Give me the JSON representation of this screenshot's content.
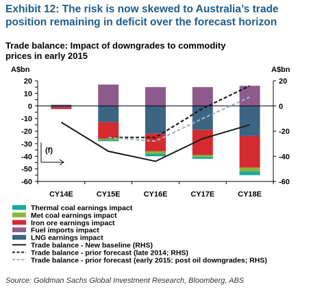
{
  "exhibit": {
    "title": "Exhibit 12: The risk is now skewed to Australia’s trade position remaining in deficit over the forecast horizon",
    "source": "Source: Goldman Sachs Global Investment Research, Bloomberg, ABS"
  },
  "colors": {
    "thermal_coal": "#1aa89a",
    "met_coal": "#8cb43a",
    "iron_ore": "#d42a30",
    "fuel_imports": "#8e5a8c",
    "lng": "#3b6583",
    "new_baseline": "#1a1a1a",
    "prior_late_2014": "#1a1a1a",
    "prior_early_2015": "#9fb0c8"
  },
  "chart_data": {
    "type": "bar",
    "title": "Trade balance: Impact of downgrades to commodity prices in early 2015",
    "ylabel_left": "A$bn",
    "ylabel_right": "A$bn",
    "ylim_left": [
      -60,
      20
    ],
    "ylim_right": [
      -60,
      20
    ],
    "yticks_left": [
      20,
      15,
      10,
      5,
      0,
      -5,
      -10,
      -15,
      -20,
      -25,
      -30,
      -35,
      -40,
      -45,
      -50,
      -55,
      -60
    ],
    "yticks_right": [
      20,
      0,
      -20,
      -40,
      -60
    ],
    "categories": [
      "CY14E",
      "CY15E",
      "CY16E",
      "CY17E",
      "CY18E"
    ],
    "annotation": "(f)",
    "stacked_bars": [
      {
        "name": "Fuel imports impact",
        "color_key": "fuel_imports",
        "values": [
          1,
          17,
          15,
          15,
          16
        ]
      },
      {
        "name": "LNG earnings impact",
        "color_key": "lng",
        "values": [
          -1,
          -13,
          -22,
          -19,
          -24
        ]
      },
      {
        "name": "Iron ore earnings impact",
        "color_key": "iron_ore",
        "values": [
          -1.5,
          -13,
          -14,
          -20,
          -25
        ]
      },
      {
        "name": "Met coal earnings impact",
        "color_key": "met_coal",
        "values": [
          0,
          -1,
          -2,
          -1.5,
          -3
        ]
      },
      {
        "name": "Thermal coal earnings impact",
        "color_key": "thermal_coal",
        "values": [
          0,
          -1,
          -2,
          -1.5,
          -3
        ]
      }
    ],
    "lines": [
      {
        "name": "Trade balance - New baseline (RHS)",
        "color_key": "new_baseline",
        "dash": "solid",
        "values": [
          -13,
          -36,
          -44,
          -26,
          -15
        ]
      },
      {
        "name": "Trade balance - prior forecast (late 2014; RHS)",
        "color_key": "prior_late_2014",
        "dash": "dashed",
        "values": [
          null,
          -25,
          -25,
          -2,
          16
        ]
      },
      {
        "name": "Trade balance - prior forecast (early 2015: post oil downgrades; RHS)",
        "color_key": "prior_early_2015",
        "dash": "dashed",
        "values": [
          null,
          -25,
          -28,
          -10,
          7
        ]
      }
    ],
    "legend": [
      {
        "label": "Thermal coal earnings impact",
        "kind": "box",
        "color_key": "thermal_coal"
      },
      {
        "label": "Met coal earnings impact",
        "kind": "box",
        "color_key": "met_coal"
      },
      {
        "label": "Iron ore earnings impact",
        "kind": "box",
        "color_key": "iron_ore"
      },
      {
        "label": "Fuel imports impact",
        "kind": "box",
        "color_key": "fuel_imports"
      },
      {
        "label": "LNG earnings impact",
        "kind": "box",
        "color_key": "lng"
      },
      {
        "label": "Trade balance - New baseline (RHS)",
        "kind": "solid",
        "color_key": "new_baseline"
      },
      {
        "label": "Trade balance - prior forecast (late 2014; RHS)",
        "kind": "dashed",
        "color_key": "prior_late_2014"
      },
      {
        "label": "Trade balance - prior forecast (early 2015: post oil downgrades; RHS)",
        "kind": "dashed",
        "color_key": "prior_early_2015"
      }
    ],
    "legend_position": "bottom-left",
    "grid": false
  }
}
